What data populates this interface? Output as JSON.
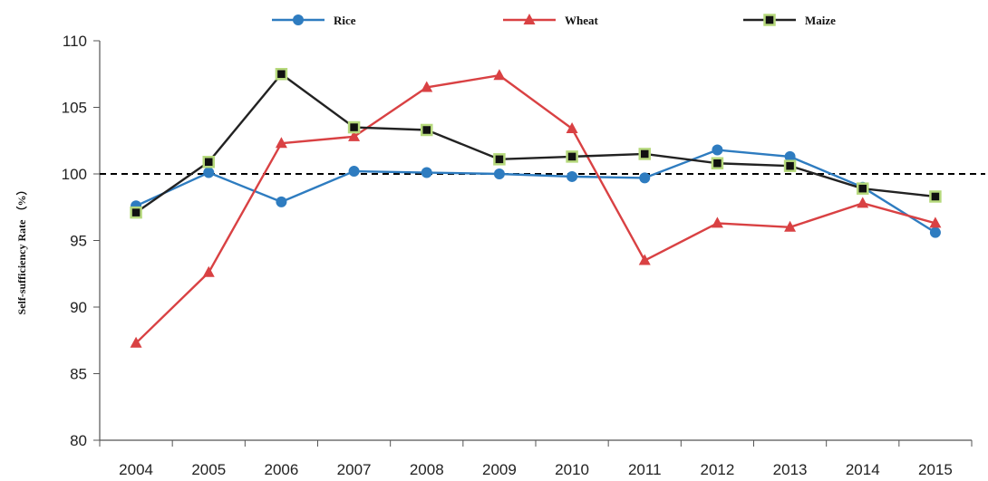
{
  "chart_data": {
    "type": "line",
    "title": "",
    "xlabel": "",
    "ylabel": "Self-sufficiency Rate （%）",
    "ylim": [
      80,
      110
    ],
    "yticks": [
      80,
      85,
      90,
      95,
      100,
      105,
      110
    ],
    "categories": [
      "2004",
      "2005",
      "2006",
      "2007",
      "2008",
      "2009",
      "2010",
      "2011",
      "2012",
      "2013",
      "2014",
      "2015"
    ],
    "reference_line": {
      "y": 100,
      "style": "dashed",
      "color": "#000000"
    },
    "legend_position": "top",
    "grid": false,
    "series": [
      {
        "name": "Rice",
        "color": "#2e7cc0",
        "marker": "circle",
        "values": [
          97.6,
          100.1,
          97.9,
          100.2,
          100.1,
          100.0,
          99.8,
          99.7,
          101.8,
          101.3,
          99.0,
          95.6
        ]
      },
      {
        "name": "Wheat",
        "color": "#d94143",
        "marker": "triangle",
        "values": [
          87.3,
          92.6,
          102.3,
          102.8,
          106.5,
          107.4,
          103.4,
          93.5,
          96.3,
          96.0,
          97.8,
          96.3
        ]
      },
      {
        "name": "Maize",
        "color": "#222222",
        "marker": "square",
        "marker_fill": "#111111",
        "marker_stroke": "#b6d97c",
        "values": [
          97.1,
          100.9,
          107.5,
          103.5,
          103.3,
          101.1,
          101.3,
          101.5,
          100.8,
          100.6,
          98.9,
          98.3
        ]
      }
    ]
  }
}
